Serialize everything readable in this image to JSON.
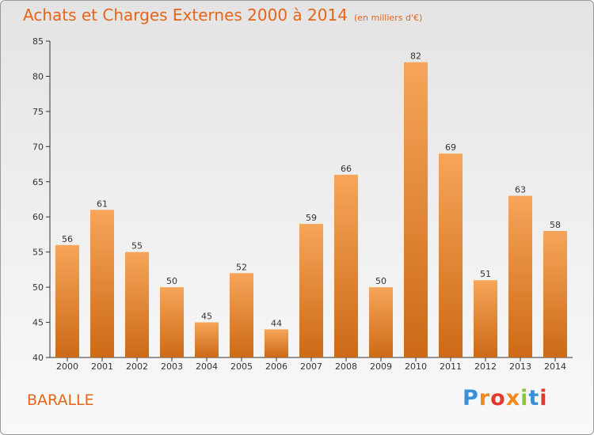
{
  "title": "Achats et Charges Externes 2000 à 2014",
  "subtitle": "(en milliers d'€)",
  "commune": "BARALLE",
  "logo": "Proxiti",
  "colors": {
    "title": "#e5651a",
    "bar_light": "#f6a55a",
    "bar_dark": "#cc6a16",
    "logo_letters": [
      "#3a8fd6",
      "#f08a1c",
      "#e23a2b",
      "#f08a1c",
      "#8bc53f",
      "#3a8fd6",
      "#e23a2b"
    ]
  },
  "chart_data": {
    "type": "bar",
    "title": "Achats et Charges Externes 2000 à 2014",
    "subtitle": "(en milliers d'€)",
    "categories": [
      "2000",
      "2001",
      "2002",
      "2003",
      "2004",
      "2005",
      "2006",
      "2007",
      "2008",
      "2009",
      "2010",
      "2011",
      "2012",
      "2013",
      "2014"
    ],
    "values": [
      56,
      61,
      55,
      50,
      45,
      52,
      44,
      59,
      66,
      50,
      82,
      69,
      51,
      63,
      58
    ],
    "ylim": [
      40,
      85
    ],
    "yticks": [
      40,
      45,
      50,
      55,
      60,
      65,
      70,
      75,
      80,
      85
    ],
    "grid": false,
    "data_labels": true
  }
}
